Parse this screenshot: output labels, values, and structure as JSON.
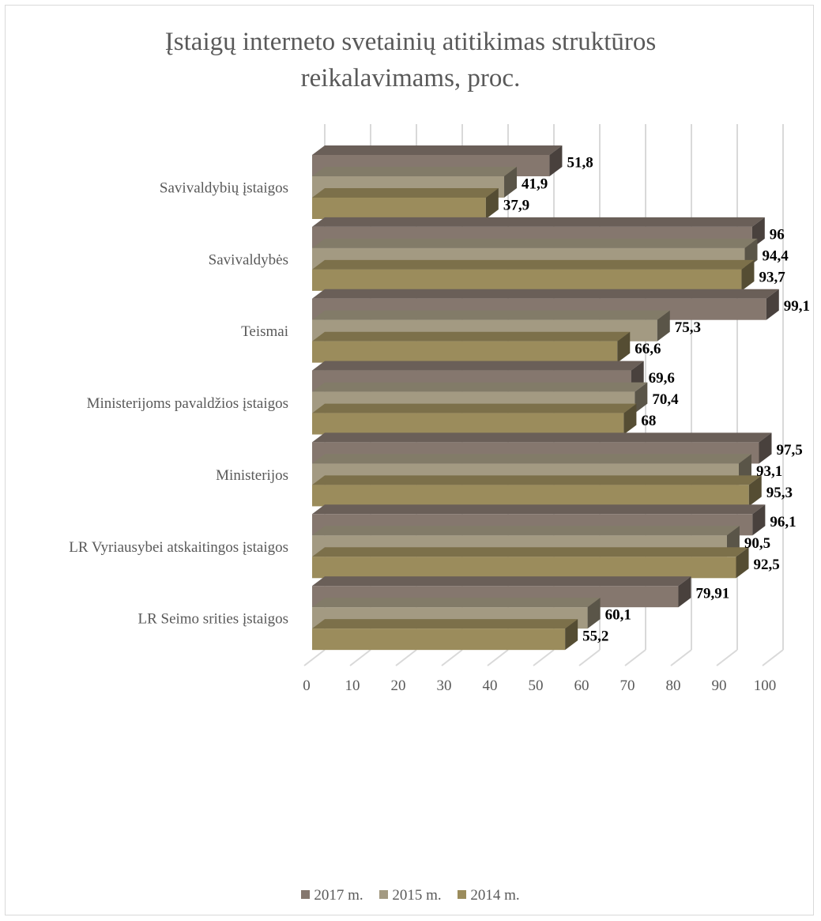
{
  "chart_data": {
    "type": "bar",
    "orientation": "horizontal",
    "title": "Įstaigų interneto svetainių atitikimas struktūros reikalavimams, proc.",
    "title_lines": [
      "Įstaigų interneto svetainių atitikimas struktūros",
      "reikalavimams, proc."
    ],
    "categories": [
      "Savivaldybių įstaigos",
      "Savivaldybės",
      "Teismai",
      "Ministerijoms pavaldžios įstaigos",
      "Ministerijos",
      "LR Vyriausybei atskaitingos įstaigos",
      "LR Seimo srities įstaigos"
    ],
    "series": [
      {
        "name": "2017 m.",
        "color": "#85776e",
        "values": [
          51.8,
          96,
          99.1,
          69.6,
          97.5,
          96.1,
          79.91
        ],
        "labels": [
          "51,8",
          "96",
          "99,1",
          "69,6",
          "97,5",
          "96,1",
          "79,91"
        ]
      },
      {
        "name": "2015 m.",
        "color": "#a39a82",
        "values": [
          41.9,
          94.4,
          75.3,
          70.4,
          93.1,
          90.5,
          60.1
        ],
        "labels": [
          "41,9",
          "94,4",
          "75,3",
          "70,4",
          "93,1",
          "90,5",
          "60,1"
        ]
      },
      {
        "name": "2014 m.",
        "color": "#9b8c5c",
        "values": [
          37.9,
          93.7,
          66.6,
          68,
          95.3,
          92.5,
          55.2
        ],
        "labels": [
          "37,9",
          "93,7",
          "66,6",
          "68",
          "95,3",
          "92,5",
          "55,2"
        ]
      }
    ],
    "x_ticks": [
      "0",
      "10",
      "20",
      "30",
      "40",
      "50",
      "60",
      "70",
      "80",
      "90",
      "100"
    ],
    "xlim": [
      0,
      100
    ],
    "grid": true,
    "legend_position": "bottom",
    "style": "3d"
  }
}
